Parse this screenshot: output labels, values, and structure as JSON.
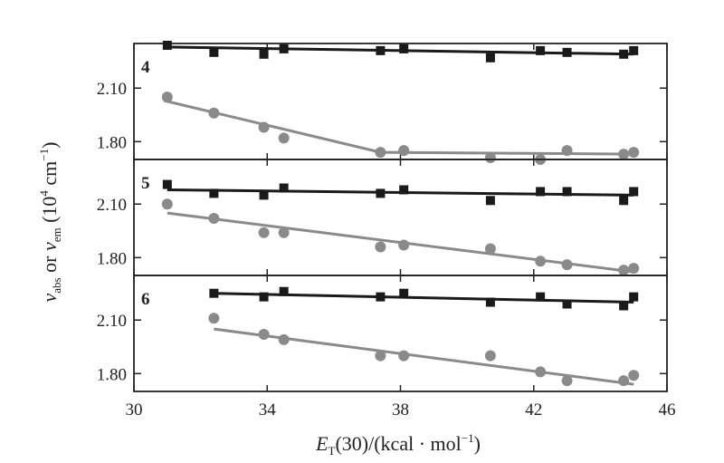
{
  "chart_data": {
    "type": "scatter",
    "x_label": {
      "main": "E",
      "sub": "T",
      "rest": "(30)/(kcal · mol",
      "sup": "−1",
      "close": ")"
    },
    "y_label": {
      "v1": "ν",
      "sub1": "abs",
      "or": " or ",
      "v2": "ν",
      "sub2": "em",
      "unit_open": " (10",
      "unit_sup": "4",
      "unit_mid": " cm",
      "unit_sup2": "−1",
      "unit_close": ")"
    },
    "xlim": [
      30,
      46
    ],
    "x_ticks": [
      "30",
      "34",
      "38",
      "42",
      "46"
    ],
    "x_tick_values": [
      30,
      34,
      38,
      42,
      46
    ],
    "ylim": [
      1.7,
      2.35
    ],
    "y_ticks": [
      "1.80",
      "2.10"
    ],
    "y_tick_values": [
      1.8,
      2.1
    ],
    "grid": false,
    "panels": [
      {
        "label": "4",
        "series": [
          {
            "marker": "square",
            "color": "#1a1a1a",
            "x": [
              31.0,
              32.4,
              33.9,
              34.5,
              37.4,
              38.1,
              40.7,
              42.2,
              43.0,
              44.7,
              45.0
            ],
            "y": [
              2.34,
              2.3,
              2.29,
              2.32,
              2.31,
              2.32,
              2.27,
              2.31,
              2.3,
              2.29,
              2.31
            ],
            "fit": {
              "x": [
                31.0,
                45.0
              ],
              "y": [
                2.33,
                2.29
              ]
            }
          },
          {
            "marker": "circle",
            "color": "#8a8a8a",
            "x": [
              31.0,
              32.4,
              33.9,
              34.5,
              37.4,
              38.1,
              40.7,
              42.2,
              43.0,
              44.7,
              45.0
            ],
            "y": [
              2.05,
              1.96,
              1.88,
              1.82,
              1.74,
              1.75,
              1.71,
              1.7,
              1.75,
              1.73,
              1.74
            ],
            "fit": {
              "x": [
                30.9,
                37.4,
                45.0
              ],
              "y": [
                2.03,
                1.74,
                1.73
              ]
            }
          }
        ]
      },
      {
        "label": "5",
        "series": [
          {
            "marker": "square",
            "color": "#1a1a1a",
            "x": [
              31.0,
              32.4,
              33.9,
              34.5,
              37.4,
              38.1,
              40.7,
              42.2,
              43.0,
              44.7,
              45.0
            ],
            "y": [
              2.21,
              2.16,
              2.15,
              2.19,
              2.16,
              2.18,
              2.12,
              2.17,
              2.17,
              2.12,
              2.17
            ],
            "fit": {
              "x": [
                31.0,
                45.0
              ],
              "y": [
                2.18,
                2.15
              ]
            }
          },
          {
            "marker": "circle",
            "color": "#8a8a8a",
            "x": [
              31.0,
              32.4,
              33.9,
              34.5,
              37.4,
              38.1,
              40.7,
              42.2,
              43.0,
              44.7,
              45.0
            ],
            "y": [
              2.1,
              2.02,
              1.94,
              1.94,
              1.86,
              1.87,
              1.85,
              1.78,
              1.76,
              1.73,
              1.74
            ],
            "fit": {
              "x": [
                31.0,
                45.0
              ],
              "y": [
                2.05,
                1.72
              ]
            }
          }
        ]
      },
      {
        "label": "6",
        "series": [
          {
            "marker": "square",
            "color": "#1a1a1a",
            "x": [
              32.4,
              33.9,
              34.5,
              37.4,
              38.1,
              40.7,
              42.2,
              43.0,
              44.7,
              45.0
            ],
            "y": [
              2.25,
              2.23,
              2.26,
              2.23,
              2.25,
              2.2,
              2.23,
              2.19,
              2.18,
              2.23
            ],
            "fit": {
              "x": [
                32.4,
                45.0
              ],
              "y": [
                2.25,
                2.2
              ]
            }
          },
          {
            "marker": "circle",
            "color": "#8a8a8a",
            "x": [
              32.4,
              33.9,
              34.5,
              37.4,
              38.1,
              40.7,
              42.2,
              43.0,
              44.7,
              45.0
            ],
            "y": [
              2.11,
              2.02,
              1.99,
              1.9,
              1.9,
              1.9,
              1.81,
              1.76,
              1.76,
              1.79
            ],
            "fit": {
              "x": [
                32.4,
                45.0
              ],
              "y": [
                2.05,
                1.74
              ]
            }
          }
        ]
      }
    ]
  }
}
